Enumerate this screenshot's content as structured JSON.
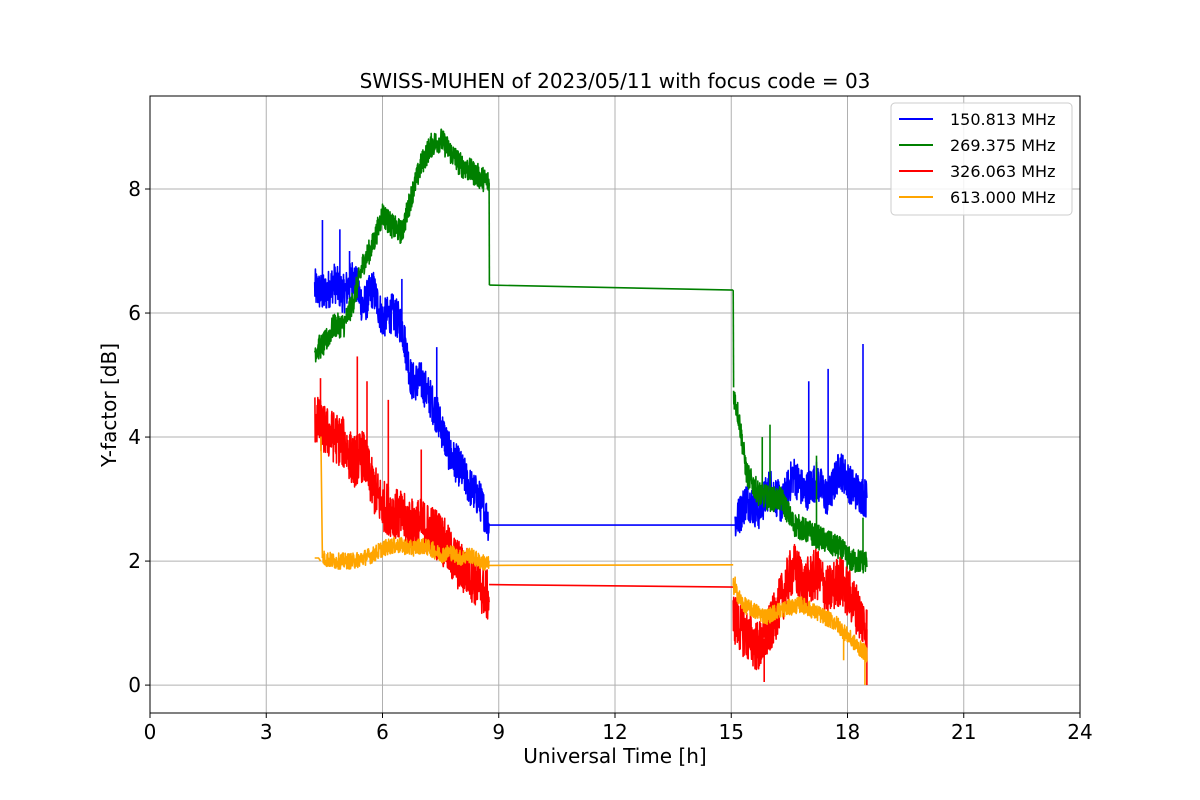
{
  "chart_data": {
    "type": "line",
    "title": "SWISS-MUHEN of 2023/05/11 with focus code = 03",
    "xlabel": "Universal Time [h]",
    "ylabel": "Y-factor [dB]",
    "xlim": [
      0,
      24
    ],
    "ylim": [
      -0.45,
      9.5
    ],
    "xticks": [
      0,
      3,
      6,
      9,
      12,
      15,
      18,
      21,
      24
    ],
    "yticks": [
      0,
      2,
      4,
      6,
      8
    ],
    "xtick_labels": [
      "0",
      "3",
      "6",
      "9",
      "12",
      "15",
      "18",
      "21",
      "24"
    ],
    "ytick_labels": [
      "0",
      "2",
      "4",
      "6",
      "8"
    ],
    "grid": true,
    "legend_position": "top-right",
    "series": [
      {
        "name": "150.813 MHz",
        "color": "#0000ff",
        "segments": [
          {
            "x": [
              4.25,
              4.5,
              4.75,
              5.0,
              5.25,
              5.5,
              5.75,
              6.0,
              6.25,
              6.5,
              6.75,
              7.0,
              7.25,
              7.5,
              7.75,
              8.0,
              8.25,
              8.5,
              8.75
            ],
            "y": [
              6.4,
              6.3,
              6.5,
              6.3,
              6.6,
              6.1,
              6.4,
              5.9,
              6.0,
              5.8,
              4.9,
              4.9,
              4.6,
              4.2,
              3.7,
              3.5,
              3.2,
              3.0,
              2.6
            ]
          },
          {
            "x": [
              8.75,
              15.1
            ],
            "y": [
              2.58,
              2.58
            ]
          },
          {
            "x": [
              15.1,
              15.4,
              15.7,
              16.0,
              16.3,
              16.6,
              16.9,
              17.2,
              17.5,
              17.8,
              18.1,
              18.5
            ],
            "y": [
              2.6,
              3.0,
              2.8,
              3.2,
              2.9,
              3.4,
              3.1,
              3.3,
              3.0,
              3.5,
              3.2,
              3.0
            ]
          }
        ],
        "noise": 0.32,
        "spikes": [
          [
            4.45,
            7.5
          ],
          [
            4.9,
            7.35
          ],
          [
            5.15,
            7.0
          ],
          [
            6.5,
            6.55
          ],
          [
            7.4,
            5.45
          ],
          [
            17.5,
            5.1
          ],
          [
            18.4,
            5.5
          ],
          [
            17.0,
            4.9
          ]
        ]
      },
      {
        "name": "269.375 MHz",
        "color": "#008000",
        "segments": [
          {
            "x": [
              4.25,
              4.5,
              4.75,
              5.0,
              5.25,
              5.5,
              5.75,
              6.0,
              6.25,
              6.5,
              6.75,
              7.0,
              7.25,
              7.5,
              7.75,
              8.0,
              8.25,
              8.5,
              8.75
            ],
            "y": [
              5.4,
              5.5,
              5.8,
              5.8,
              6.2,
              6.8,
              7.1,
              7.6,
              7.4,
              7.3,
              7.9,
              8.4,
              8.7,
              8.8,
              8.6,
              8.4,
              8.3,
              8.2,
              8.1
            ]
          },
          {
            "x": [
              8.75,
              8.76
            ],
            "y": [
              8.1,
              6.45
            ]
          },
          {
            "x": [
              8.76,
              15.05
            ],
            "y": [
              6.45,
              6.37
            ]
          },
          {
            "x": [
              15.05,
              15.06
            ],
            "y": [
              6.37,
              4.8
            ]
          },
          {
            "x": [
              15.06,
              15.2,
              15.4,
              15.7,
              16.0,
              16.3,
              16.6,
              16.9,
              17.2,
              17.5,
              17.8,
              18.1,
              18.5
            ],
            "y": [
              4.7,
              4.3,
              3.4,
              3.1,
              3.0,
              3.0,
              2.6,
              2.5,
              2.4,
              2.3,
              2.2,
              2.0,
              2.0
            ]
          }
        ],
        "noise": 0.2,
        "spikes": [
          [
            16.0,
            4.2
          ],
          [
            15.8,
            4.0
          ],
          [
            17.2,
            3.7
          ],
          [
            18.4,
            2.7
          ]
        ]
      },
      {
        "name": "326.063 MHz",
        "color": "#ff0000",
        "segments": [
          {
            "x": [
              4.25,
              4.5,
              4.75,
              5.0,
              5.25,
              5.5,
              5.75,
              6.0,
              6.25,
              6.5,
              6.75,
              7.0,
              7.25,
              7.5,
              7.75,
              8.0,
              8.25,
              8.5,
              8.75
            ],
            "y": [
              4.3,
              4.1,
              4.0,
              3.9,
              3.6,
              3.7,
              3.2,
              2.9,
              2.8,
              2.7,
              2.6,
              2.6,
              2.5,
              2.4,
              2.1,
              1.9,
              1.8,
              1.6,
              1.4
            ]
          },
          {
            "x": [
              8.75,
              15.05
            ],
            "y": [
              1.62,
              1.58
            ]
          },
          {
            "x": [
              15.05,
              15.4,
              15.7,
              16.0,
              16.3,
              16.6,
              16.9,
              17.2,
              17.5,
              17.8,
              18.1,
              18.5
            ],
            "y": [
              1.1,
              0.8,
              0.6,
              0.9,
              1.4,
              1.9,
              1.6,
              1.8,
              1.5,
              1.7,
              1.4,
              0.9
            ]
          }
        ],
        "noise": 0.42,
        "spikes": [
          [
            5.35,
            5.3
          ],
          [
            5.6,
            4.9
          ],
          [
            6.15,
            4.6
          ],
          [
            7.0,
            3.8
          ],
          [
            4.4,
            4.95
          ],
          [
            15.85,
            0.05
          ],
          [
            18.5,
            0.0
          ]
        ]
      },
      {
        "name": "613.000 MHz",
        "color": "#ffa500",
        "segments": [
          {
            "x": [
              4.25,
              4.35,
              4.4
            ],
            "y": [
              2.05,
              2.05,
              2.0
            ]
          },
          {
            "x": [
              4.4,
              4.41,
              4.45
            ],
            "y": [
              4.0,
              4.0,
              2.05
            ]
          },
          {
            "x": [
              4.45,
              4.75,
              5.0,
              5.25,
              5.5,
              5.75,
              6.0,
              6.25,
              6.5,
              6.75,
              7.0,
              7.25,
              7.5,
              7.75,
              8.0,
              8.25,
              8.5,
              8.75
            ],
            "y": [
              2.05,
              2.0,
              2.0,
              2.0,
              2.05,
              2.1,
              2.2,
              2.25,
              2.25,
              2.2,
              2.25,
              2.2,
              2.1,
              2.15,
              2.05,
              2.1,
              2.0,
              1.95
            ]
          },
          {
            "x": [
              8.75,
              15.05
            ],
            "y": [
              1.93,
              1.94
            ]
          },
          {
            "x": [
              15.05,
              15.3,
              15.6,
              15.9,
              16.2,
              16.5,
              16.8,
              17.1,
              17.4,
              17.7,
              18.0,
              18.3,
              18.5
            ],
            "y": [
              1.6,
              1.3,
              1.2,
              1.1,
              1.2,
              1.25,
              1.3,
              1.2,
              1.1,
              1.0,
              0.8,
              0.6,
              0.5
            ]
          }
        ],
        "noise": 0.13,
        "spikes": [
          [
            17.9,
            0.4
          ],
          [
            18.45,
            0.0
          ],
          [
            15.1,
            1.75
          ]
        ]
      }
    ]
  }
}
